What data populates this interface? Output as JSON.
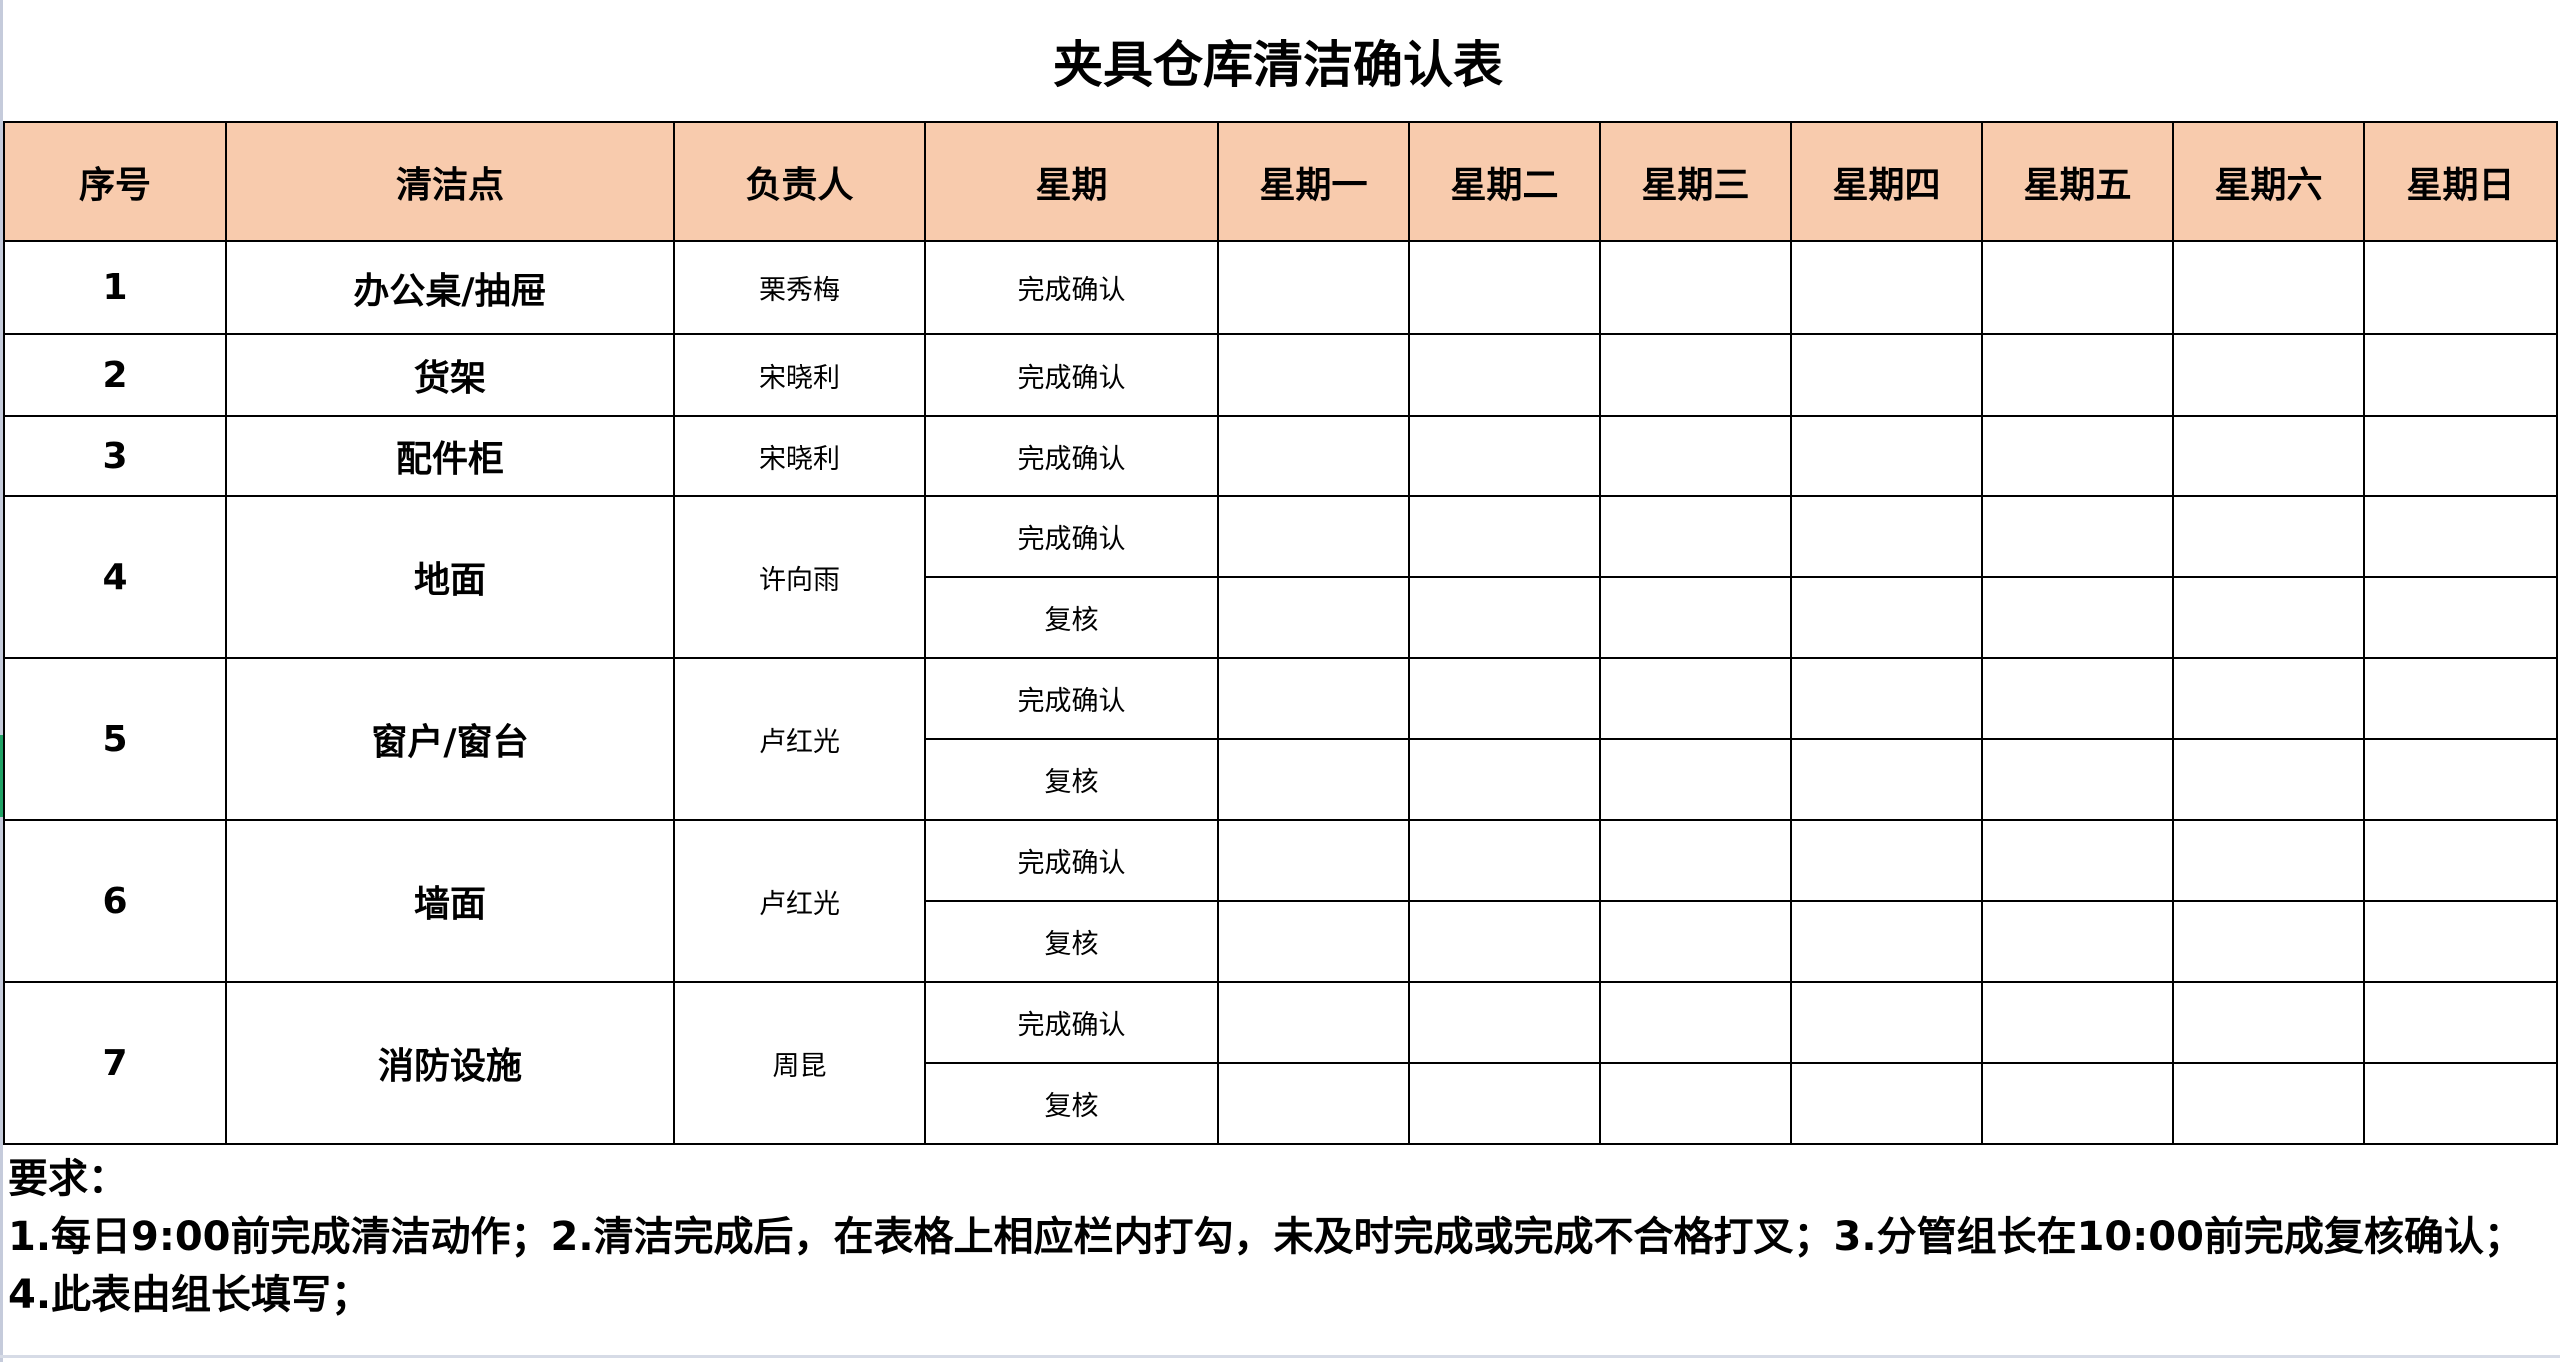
{
  "title": "夹具仓库清洁确认表",
  "colors": {
    "header_bg": "#F8CBAD",
    "border": "#000000"
  },
  "headers": [
    "序号",
    "清洁点",
    "负责人",
    "星期",
    "星期一",
    "星期二",
    "星期三",
    "星期四",
    "星期五",
    "星期六",
    "星期日"
  ],
  "rows": [
    {
      "no": "1",
      "point": "办公桌/抽屉",
      "owner": "栗秀梅",
      "checks": [
        "完成确认"
      ]
    },
    {
      "no": "2",
      "point": "货架",
      "owner": "宋晓利",
      "checks": [
        "完成确认"
      ]
    },
    {
      "no": "3",
      "point": "配件柜",
      "owner": "宋晓利",
      "checks": [
        "完成确认"
      ]
    },
    {
      "no": "4",
      "point": "地面",
      "owner": "许向雨",
      "checks": [
        "完成确认",
        "复核"
      ]
    },
    {
      "no": "5",
      "point": "窗户/窗台",
      "owner": "卢红光",
      "checks": [
        "完成确认",
        "复核"
      ]
    },
    {
      "no": "6",
      "point": "墙面",
      "owner": "卢红光",
      "checks": [
        "完成确认",
        "复核"
      ]
    },
    {
      "no": "7",
      "point": "消防设施",
      "owner": "周昆",
      "checks": [
        "完成确认",
        "复核"
      ]
    }
  ],
  "notes": {
    "label": "要求：",
    "text": "1.每日9:00前完成清洁动作；2.清洁完成后，在表格上相应栏内打勾，未及时完成或完成不合格打叉；3.分管组长在10:00前完成复核确认；4.此表由组长填写；"
  }
}
